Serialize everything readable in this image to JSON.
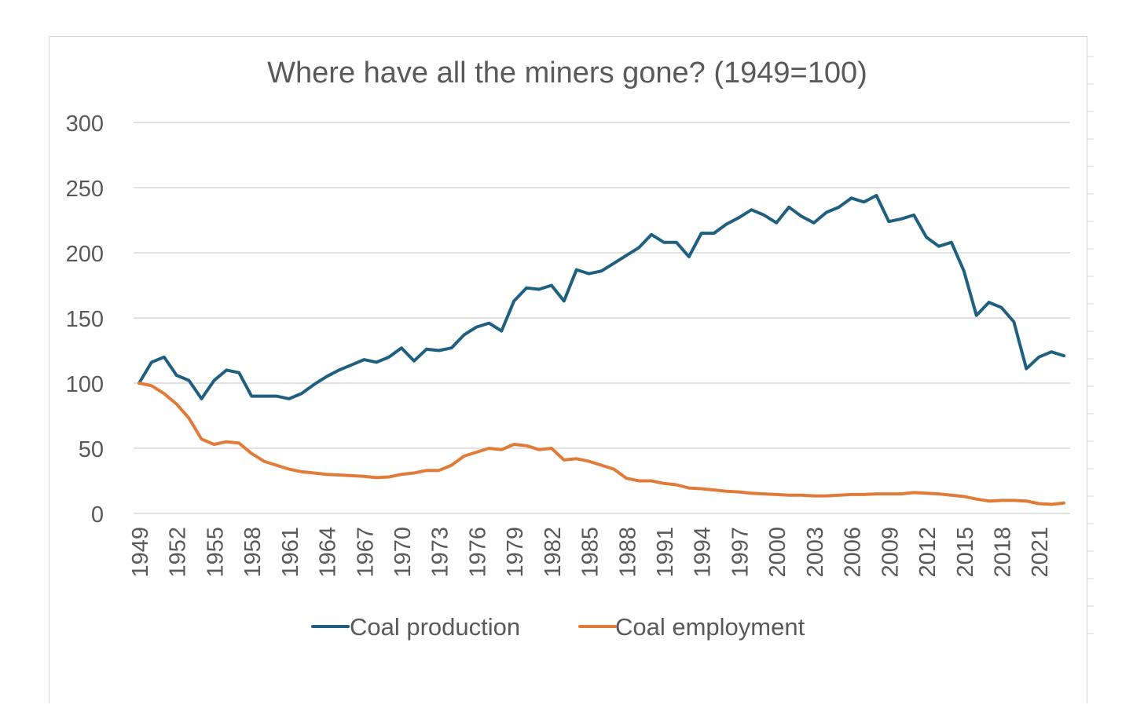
{
  "chart_data": {
    "type": "line",
    "title": "Where have all the miners gone? (1949=100)",
    "xlabel": "",
    "ylabel": "",
    "ylim": [
      0,
      300
    ],
    "yticks": [
      0,
      50,
      100,
      150,
      200,
      250,
      300
    ],
    "grid": true,
    "legend_position": "bottom",
    "x": [
      1949,
      1950,
      1951,
      1952,
      1953,
      1954,
      1955,
      1956,
      1957,
      1958,
      1959,
      1960,
      1961,
      1962,
      1963,
      1964,
      1965,
      1966,
      1967,
      1968,
      1969,
      1970,
      1971,
      1972,
      1973,
      1974,
      1975,
      1976,
      1977,
      1978,
      1979,
      1980,
      1981,
      1982,
      1983,
      1984,
      1985,
      1986,
      1987,
      1988,
      1989,
      1990,
      1991,
      1992,
      1993,
      1994,
      1995,
      1996,
      1997,
      1998,
      1999,
      2000,
      2001,
      2002,
      2003,
      2004,
      2005,
      2006,
      2007,
      2008,
      2009,
      2010,
      2011,
      2012,
      2013,
      2014,
      2015,
      2016,
      2017,
      2018,
      2019,
      2020,
      2021,
      2022,
      2023
    ],
    "xtick_labels": [
      "1949",
      "1952",
      "1955",
      "1958",
      "1961",
      "1964",
      "1967",
      "1970",
      "1973",
      "1976",
      "1979",
      "1982",
      "1985",
      "1988",
      "1991",
      "1994",
      "1997",
      "2000",
      "2003",
      "2006",
      "2009",
      "2012",
      "2015",
      "2018",
      "2021"
    ],
    "series": [
      {
        "name": "Coal production",
        "color": "#1f5f7f",
        "values": [
          100,
          116,
          120,
          106,
          102,
          88,
          102,
          110,
          108,
          90,
          90,
          90,
          88,
          92,
          99,
          105,
          110,
          114,
          118,
          116,
          120,
          127,
          117,
          126,
          125,
          127,
          137,
          143,
          146,
          140,
          163,
          173,
          172,
          175,
          163,
          187,
          184,
          186,
          192,
          198,
          204,
          214,
          208,
          208,
          197,
          215,
          215,
          222,
          227,
          233,
          229,
          223,
          235,
          228,
          223,
          231,
          235,
          242,
          239,
          244,
          224,
          226,
          229,
          212,
          205,
          208,
          186,
          152,
          162,
          158,
          147,
          111,
          120,
          124,
          121
        ]
      },
      {
        "name": "Coal employment",
        "color": "#e07b39",
        "values": [
          100,
          98,
          92,
          84,
          73,
          57,
          53,
          55,
          54,
          46,
          40,
          37,
          34,
          32,
          31,
          30,
          29.5,
          29,
          28.5,
          27.5,
          28,
          30,
          31,
          33,
          33,
          37,
          44,
          47,
          50,
          49,
          53,
          52,
          49,
          50,
          41,
          42,
          40,
          37,
          34,
          27,
          25,
          25,
          23,
          22,
          19.5,
          19,
          18,
          17,
          16.5,
          15.5,
          15,
          14.5,
          14,
          14,
          13.5,
          13.5,
          14,
          14.5,
          14.5,
          15,
          15,
          15,
          16,
          15.5,
          15,
          14,
          13,
          11,
          9.5,
          10,
          10,
          9.5,
          7.5,
          7,
          8
        ]
      }
    ]
  }
}
